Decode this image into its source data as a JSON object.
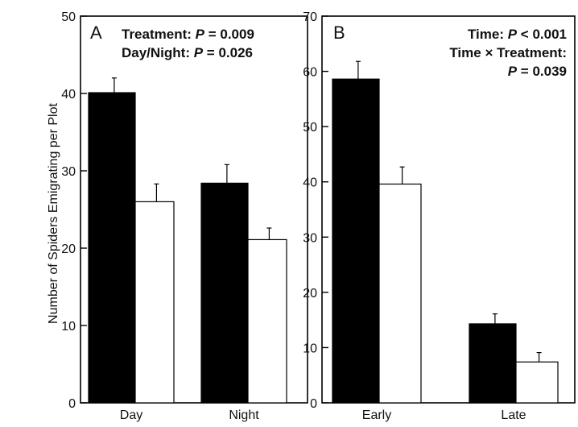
{
  "figure": {
    "ylabel": "Number of Spiders Emigrating per Plot"
  },
  "chart_data": [
    {
      "type": "bar",
      "panel": "A",
      "categories": [
        "Day",
        "Night"
      ],
      "series": [
        {
          "color": "#000000",
          "values": [
            40.1,
            28.4
          ],
          "errors": [
            1.9,
            2.4
          ]
        },
        {
          "color": "#ffffff",
          "values": [
            26.0,
            21.1
          ],
          "errors": [
            2.3,
            1.5
          ]
        }
      ],
      "ylim": [
        0,
        50
      ],
      "yticks": [
        "0",
        "10",
        "20",
        "30",
        "40",
        "50"
      ],
      "annotations": [
        {
          "label": "Treatment: ",
          "pvar": "P",
          "rest": " = 0.009"
        },
        {
          "label": "Day/Night: ",
          "pvar": "P",
          "rest": " = 0.026"
        }
      ]
    },
    {
      "type": "bar",
      "panel": "B",
      "categories": [
        "Early",
        "Late"
      ],
      "series": [
        {
          "color": "#000000",
          "values": [
            58.6,
            14.3
          ],
          "errors": [
            3.2,
            1.8
          ]
        },
        {
          "color": "#ffffff",
          "values": [
            39.6,
            7.4
          ],
          "errors": [
            3.1,
            1.7
          ]
        }
      ],
      "ylim": [
        0,
        70
      ],
      "yticks": [
        "0",
        "10",
        "20",
        "30",
        "40",
        "50",
        "60",
        "70"
      ],
      "annotations": [
        {
          "label": "Time: ",
          "pvar": "P",
          "rest": " < 0.001"
        },
        {
          "label": "Time × Treatment:",
          "pvar": "",
          "rest": ""
        },
        {
          "label": "",
          "pvar": "P",
          "rest": " = 0.039"
        }
      ]
    }
  ]
}
